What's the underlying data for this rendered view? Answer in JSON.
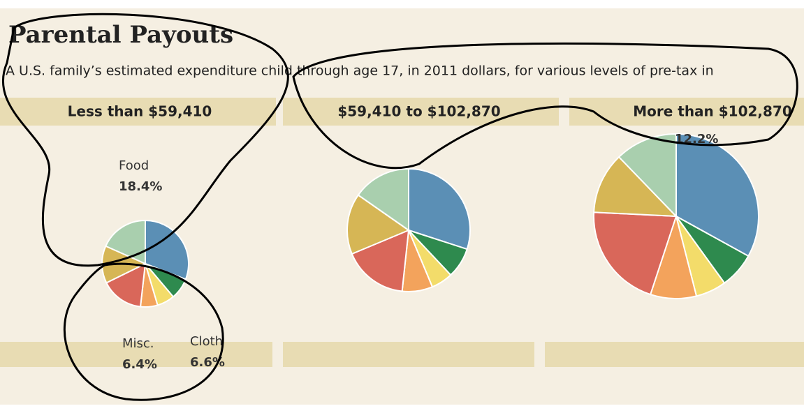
{
  "header": {
    "title": "Parental Payouts",
    "subtitle": "A U.S. family’s estimated expenditure child through age 17, in 2011 dollars, for various levels of pre-tax in"
  },
  "chart_data": [
    {
      "type": "pie",
      "title": "Less than $59,410",
      "categories": [
        null,
        null,
        "Cloth",
        "Misc.",
        null,
        null,
        "Food"
      ],
      "values": [
        31,
        8,
        6.6,
        6.4,
        16,
        14,
        18.4
      ],
      "value_labels": [
        null,
        null,
        "6.6%",
        "6.4%",
        null,
        null,
        "18.4%"
      ],
      "colors": [
        "#5b8fb5",
        "#2e8a4e",
        "#f3dc6a",
        "#f3a35c",
        "#d9675a",
        "#d6b655",
        "#a9cfae"
      ]
    },
    {
      "type": "pie",
      "title": "$59,410 to $102,870",
      "categories": [
        null,
        null,
        null,
        null,
        null,
        null,
        null
      ],
      "values": [
        30,
        8,
        5.7,
        8,
        17,
        16,
        15.3
      ],
      "value_labels": [
        null,
        null,
        null,
        null,
        null,
        null,
        null
      ],
      "colors": [
        "#5b8fb5",
        "#2e8a4e",
        "#f3dc6a",
        "#f3a35c",
        "#d9675a",
        "#d6b655",
        "#a9cfae"
      ]
    },
    {
      "type": "pie",
      "title": "More than $102,870",
      "categories": [
        null,
        null,
        null,
        null,
        null,
        null,
        null
      ],
      "values": [
        33,
        7,
        6,
        9,
        20.7,
        12,
        12.2
      ],
      "value_labels": [
        null,
        null,
        null,
        null,
        null,
        null,
        "12.2%"
      ],
      "colors": [
        "#5b8fb5",
        "#2e8a4e",
        "#f3dc6a",
        "#f3a35c",
        "#d9675a",
        "#d6b655",
        "#a9cfae"
      ]
    }
  ]
}
